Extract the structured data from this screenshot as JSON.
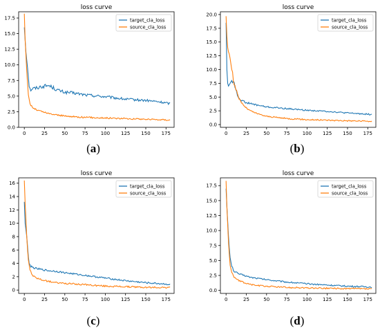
{
  "chart_data": [
    {
      "type": "line",
      "panel_label": "a",
      "title": "loss curve",
      "xlabel": "",
      "ylabel": "",
      "xlim": [
        -7,
        185
      ],
      "ylim": [
        0,
        18.5
      ],
      "xticks": [
        0,
        25,
        50,
        75,
        100,
        125,
        150,
        175
      ],
      "yticks": [
        0.0,
        2.5,
        5.0,
        7.5,
        10.0,
        12.5,
        15.0,
        17.5
      ],
      "ytick_labels": [
        "0.0",
        "2.5",
        "5.0",
        "7.5",
        "10.0",
        "12.5",
        "15.0",
        "17.5"
      ],
      "legend_position": "top-right",
      "grid": false,
      "series": [
        {
          "name": "target_cla_loss",
          "color": "#1f77b4",
          "x": [
            0,
            2,
            4,
            6,
            8,
            10,
            15,
            20,
            25,
            30,
            35,
            40,
            45,
            50,
            60,
            75,
            100,
            125,
            150,
            165,
            175,
            180
          ],
          "y": [
            16.0,
            12.0,
            9.5,
            6.5,
            6.0,
            6.2,
            6.3,
            6.5,
            6.6,
            6.7,
            6.4,
            6.0,
            5.8,
            5.6,
            5.5,
            5.2,
            4.9,
            4.5,
            4.3,
            4.1,
            3.9,
            3.8
          ]
        },
        {
          "name": "source_cla_loss",
          "color": "#ff7f0e",
          "x": [
            0,
            1,
            2,
            3,
            4,
            5,
            7,
            10,
            15,
            20,
            25,
            30,
            40,
            50,
            75,
            100,
            125,
            150,
            175,
            180
          ],
          "y": [
            18.2,
            14.0,
            11.5,
            9.0,
            7.0,
            5.2,
            3.8,
            3.2,
            2.8,
            2.6,
            2.4,
            2.2,
            2.0,
            1.8,
            1.6,
            1.5,
            1.4,
            1.3,
            1.2,
            1.2
          ]
        }
      ]
    },
    {
      "type": "line",
      "panel_label": "b",
      "title": "loss curve",
      "xlabel": "",
      "ylabel": "",
      "xlim": [
        -7,
        185
      ],
      "ylim": [
        -0.5,
        20.5
      ],
      "xticks": [
        0,
        25,
        50,
        75,
        100,
        125,
        150,
        175
      ],
      "yticks": [
        0.0,
        2.5,
        5.0,
        7.5,
        10.0,
        12.5,
        15.0,
        17.5,
        20.0
      ],
      "ytick_labels": [
        "0.0",
        "2.5",
        "5.0",
        "7.5",
        "10.0",
        "12.5",
        "15.0",
        "17.5",
        "20.0"
      ],
      "legend_position": "top-right",
      "grid": false,
      "series": [
        {
          "name": "target_cla_loss",
          "color": "#1f77b4",
          "x": [
            0,
            1,
            2,
            3,
            5,
            7,
            9,
            12,
            15,
            20,
            25,
            30,
            40,
            50,
            75,
            100,
            125,
            150,
            175,
            180
          ],
          "y": [
            18.5,
            10.0,
            7.5,
            7.0,
            7.5,
            8.0,
            7.8,
            6.5,
            5.0,
            4.3,
            4.0,
            3.8,
            3.5,
            3.2,
            2.9,
            2.6,
            2.4,
            2.1,
            1.9,
            1.8
          ]
        },
        {
          "name": "source_cla_loss",
          "color": "#ff7f0e",
          "x": [
            0,
            1,
            2,
            3,
            4,
            5,
            7,
            10,
            15,
            20,
            25,
            30,
            40,
            50,
            75,
            100,
            125,
            150,
            175,
            180
          ],
          "y": [
            19.7,
            16.0,
            14.0,
            13.2,
            12.8,
            12.0,
            10.0,
            7.5,
            5.0,
            3.8,
            3.0,
            2.5,
            1.9,
            1.5,
            1.1,
            0.9,
            0.8,
            0.7,
            0.6,
            0.6
          ]
        }
      ]
    },
    {
      "type": "line",
      "panel_label": "c",
      "title": "loss curve",
      "xlabel": "",
      "ylabel": "",
      "xlim": [
        -7,
        185
      ],
      "ylim": [
        -0.5,
        16.8
      ],
      "xticks": [
        0,
        25,
        50,
        75,
        100,
        125,
        150,
        175
      ],
      "yticks": [
        0,
        2,
        4,
        6,
        8,
        10,
        12,
        14,
        16
      ],
      "ytick_labels": [
        "0",
        "2",
        "4",
        "6",
        "8",
        "10",
        "12",
        "14",
        "16"
      ],
      "legend_position": "top-right",
      "grid": false,
      "series": [
        {
          "name": "target_cla_loss",
          "color": "#1f77b4",
          "x": [
            0,
            1,
            2,
            3,
            4,
            5,
            6,
            8,
            10,
            15,
            20,
            25,
            30,
            40,
            50,
            75,
            100,
            125,
            150,
            175,
            180
          ],
          "y": [
            13.2,
            10.0,
            9.0,
            8.0,
            6.5,
            5.0,
            4.0,
            3.6,
            3.4,
            3.2,
            3.1,
            3.0,
            2.9,
            2.8,
            2.6,
            2.2,
            1.8,
            1.4,
            1.1,
            0.9,
            0.8
          ]
        },
        {
          "name": "source_cla_loss",
          "color": "#ff7f0e",
          "x": [
            0,
            1,
            2,
            3,
            4,
            5,
            7,
            10,
            15,
            20,
            25,
            30,
            40,
            50,
            75,
            100,
            125,
            150,
            175,
            180
          ],
          "y": [
            16.4,
            13.0,
            10.5,
            8.0,
            6.0,
            4.5,
            3.0,
            2.2,
            1.8,
            1.6,
            1.4,
            1.3,
            1.1,
            1.0,
            0.8,
            0.6,
            0.5,
            0.4,
            0.4,
            0.35
          ]
        }
      ]
    },
    {
      "type": "line",
      "panel_label": "d",
      "title": "loss curve",
      "xlabel": "",
      "ylabel": "",
      "xlim": [
        -7,
        185
      ],
      "ylim": [
        -0.5,
        18.8
      ],
      "xticks": [
        0,
        25,
        50,
        75,
        100,
        125,
        150,
        175
      ],
      "yticks": [
        0.0,
        2.5,
        5.0,
        7.5,
        10.0,
        12.5,
        15.0,
        17.5
      ],
      "ytick_labels": [
        "0.0",
        "2.5",
        "5.0",
        "7.5",
        "10.0",
        "12.5",
        "15.0",
        "17.5"
      ],
      "legend_position": "top-right",
      "grid": false,
      "series": [
        {
          "name": "target_cla_loss",
          "color": "#1f77b4",
          "x": [
            0,
            1,
            2,
            3,
            4,
            5,
            7,
            10,
            15,
            20,
            25,
            30,
            40,
            50,
            75,
            100,
            125,
            150,
            175,
            180
          ],
          "y": [
            17.0,
            14.0,
            11.5,
            9.0,
            7.0,
            5.5,
            4.0,
            3.2,
            2.8,
            2.6,
            2.4,
            2.2,
            2.0,
            1.8,
            1.4,
            1.1,
            0.9,
            0.7,
            0.6,
            0.55
          ]
        },
        {
          "name": "source_cla_loss",
          "color": "#ff7f0e",
          "x": [
            0,
            1,
            2,
            3,
            4,
            5,
            7,
            10,
            15,
            20,
            25,
            30,
            40,
            50,
            75,
            100,
            125,
            150,
            175,
            180
          ],
          "y": [
            18.3,
            14.0,
            11.0,
            8.0,
            6.0,
            4.2,
            3.0,
            2.2,
            1.7,
            1.4,
            1.2,
            1.0,
            0.8,
            0.7,
            0.5,
            0.4,
            0.35,
            0.3,
            0.25,
            0.25
          ]
        }
      ]
    }
  ]
}
